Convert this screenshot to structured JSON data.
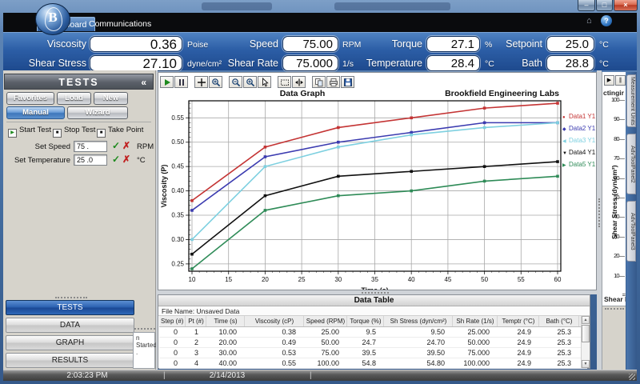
{
  "window": {
    "tabs": [
      {
        "label": "Dashboard",
        "active": true
      },
      {
        "label": "Communications",
        "active": false
      }
    ],
    "controls": {
      "minimize": "–",
      "maximize": "□",
      "close": "×"
    },
    "logo_letter": "B",
    "home_icon": "⌂",
    "help_icon": "?"
  },
  "dashboard": {
    "metrics": [
      {
        "label": "Viscosity",
        "value": "0.36",
        "unit": "Poise"
      },
      {
        "label": "Speed",
        "value": "75.00",
        "unit": "RPM"
      },
      {
        "label": "Torque",
        "value": "27.1",
        "unit": "%"
      },
      {
        "label": "Setpoint",
        "value": "25.0",
        "unit": "°C"
      },
      {
        "label": "Shear Stress",
        "value": "27.10",
        "unit": "dyne/cm²"
      },
      {
        "label": "Shear Rate",
        "value": "75.000",
        "unit": "1/s"
      },
      {
        "label": "Temperature",
        "value": "28.4",
        "unit": "°C"
      },
      {
        "label": "Bath",
        "value": "28.8",
        "unit": "°C"
      }
    ]
  },
  "tests_panel": {
    "title": "TESTS",
    "collapse_icon": "«",
    "buttons": [
      "Favorites",
      "Load",
      "New"
    ],
    "mode_buttons": [
      {
        "label": "Manual",
        "active": true
      },
      {
        "label": "Wizard",
        "active": false
      }
    ],
    "actions": [
      {
        "label": "Start Test",
        "glyph": "▶",
        "glyph_color": "#1d8a1d"
      },
      {
        "label": "Stop Test",
        "glyph": "■",
        "glyph_color": "#111111"
      },
      {
        "label": "Take Point",
        "glyph": "■",
        "glyph_color": "#111111"
      }
    ],
    "set_speed": {
      "label": "Set Speed",
      "value": "75 .",
      "ok": "✓",
      "cancel": "✗",
      "unit": "RPM"
    },
    "set_temperature": {
      "label": "Set Temperature",
      "value": "25 .0",
      "ok": "✓",
      "cancel": "✗",
      "unit": "°C"
    },
    "nav": [
      {
        "label": "TESTS",
        "active": true
      },
      {
        "label": "DATA",
        "active": false
      },
      {
        "label": "GRAPH",
        "active": false
      },
      {
        "label": "RESULTS",
        "active": false
      }
    ],
    "popup_lines": [
      "n",
      "Started",
      "."
    ]
  },
  "graph": {
    "toolbar": [
      "play",
      "pause",
      "pan",
      "zoom-window",
      "zoom-out",
      "zoom-in",
      "cursor",
      "select-region",
      "axis-fit",
      "copy",
      "print",
      "save"
    ],
    "title": "Data Graph",
    "watermark": "Brookfield Engineering Labs"
  },
  "chart_data": {
    "type": "line",
    "title": "Data Graph",
    "annotation": "Brookfield Engineering Labs",
    "xlabel": "Time (s)",
    "ylabel": "Viscosity (P)",
    "x": [
      10,
      20,
      30,
      40,
      50,
      60
    ],
    "series": [
      {
        "name": "Data1 Y1",
        "color": "#c43434",
        "marker": "●",
        "values": [
          0.38,
          0.49,
          0.53,
          0.55,
          0.57,
          0.58
        ]
      },
      {
        "name": "Data2 Y1",
        "color": "#3b3bb0",
        "marker": "◆",
        "values": [
          0.36,
          0.47,
          0.5,
          0.52,
          0.54,
          0.54
        ]
      },
      {
        "name": "Data3 Y1",
        "color": "#7ed0e0",
        "marker": "◀",
        "values": [
          0.3,
          0.45,
          0.49,
          0.515,
          0.53,
          0.54
        ]
      },
      {
        "name": "Data4 Y1",
        "color": "#101010",
        "marker": "▼",
        "values": [
          0.27,
          0.39,
          0.43,
          0.44,
          0.45,
          0.46
        ]
      },
      {
        "name": "Data5 Y1",
        "color": "#2e8b57",
        "marker": "▶",
        "values": [
          0.24,
          0.36,
          0.39,
          0.4,
          0.42,
          0.43
        ]
      }
    ],
    "xticks": [
      10,
      15,
      20,
      25,
      30,
      35,
      40,
      45,
      50,
      55,
      60
    ],
    "yticks": [
      0.25,
      0.3,
      0.35,
      0.4,
      0.45,
      0.5,
      0.55
    ],
    "xlim": [
      10,
      60
    ],
    "ylim": [
      0.235,
      0.585
    ],
    "grid": true,
    "legend_position": "right"
  },
  "right_panel": {
    "title_fragment": "ctingir",
    "axis_label": "Shear Stress (dyn/cm²)",
    "ticks": [
      "100",
      "90",
      "80",
      "70",
      "60",
      "50",
      "40",
      "30",
      "20",
      "10"
    ],
    "bottom_label": "Shear Ra",
    "tabs": [
      "Measurement Units",
      "AdvToolPanel2",
      "AdvToolPanel3"
    ]
  },
  "data_table": {
    "title": "Data Table",
    "file_name": "File Name: Unsaved Data",
    "columns": [
      "Step (#)",
      "Pt (#)",
      "Time (s)",
      "Viscosity (cP)",
      "Speed (RPM)",
      "Torque (%)",
      "Sh Stress (dyn/cm²)",
      "Sh Rate (1/s)",
      "Temptr (°C)",
      "Bath (°C)"
    ],
    "rows": [
      [
        "0",
        "1",
        "10.00",
        "0.38",
        "25.00",
        "9.5",
        "9.50",
        "25.000",
        "24.9",
        "25.3"
      ],
      [
        "0",
        "2",
        "20.00",
        "0.49",
        "50.00",
        "24.7",
        "24.70",
        "50.000",
        "24.9",
        "25.3"
      ],
      [
        "0",
        "3",
        "30.00",
        "0.53",
        "75.00",
        "39.5",
        "39.50",
        "75.000",
        "24.9",
        "25.3"
      ],
      [
        "0",
        "4",
        "40.00",
        "0.55",
        "100.00",
        "54.8",
        "54.80",
        "100.000",
        "24.9",
        "25.3"
      ]
    ]
  },
  "statusbar": {
    "time": "2:03:23 PM",
    "date": "2/14/2013"
  }
}
